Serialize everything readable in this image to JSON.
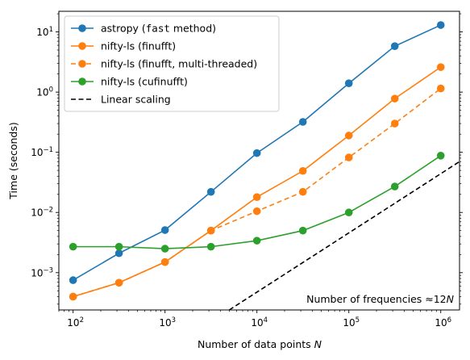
{
  "chart_data": {
    "type": "line",
    "title": "",
    "xlabel": "Number of data points N",
    "ylabel": "Time (seconds)",
    "xscale": "log",
    "yscale": "log",
    "xlim": [
      70,
      1600000
    ],
    "ylim": [
      0.00024,
      22
    ],
    "grid": false,
    "legend_position": "top-left",
    "x_ticks": [
      {
        "value": 100,
        "base": "10",
        "exp": "2"
      },
      {
        "value": 1000,
        "base": "10",
        "exp": "3"
      },
      {
        "value": 10000,
        "base": "10",
        "exp": "4"
      },
      {
        "value": 100000,
        "base": "10",
        "exp": "5"
      },
      {
        "value": 1000000,
        "base": "10",
        "exp": "6"
      }
    ],
    "y_ticks": [
      {
        "value": 0.001,
        "base": "10",
        "exp": "−3"
      },
      {
        "value": 0.01,
        "base": "10",
        "exp": "−2"
      },
      {
        "value": 0.1,
        "base": "10",
        "exp": "−1"
      },
      {
        "value": 1,
        "base": "10",
        "exp": "0"
      },
      {
        "value": 10,
        "base": "10",
        "exp": "1"
      }
    ],
    "x": [
      100,
      316,
      1000,
      3162,
      10000,
      31623,
      100000,
      316228,
      1000000
    ],
    "series": [
      {
        "name": "astropy (fast method)",
        "legend_parts": [
          "astropy (",
          "fast",
          " method)"
        ],
        "color": "#1f77b4",
        "dashed": false,
        "x": [
          100,
          316,
          1000,
          3162,
          10000,
          31623,
          100000,
          316228,
          1000000
        ],
        "values": [
          0.00075,
          0.0021,
          0.0051,
          0.022,
          0.097,
          0.32,
          1.4,
          5.8,
          13
        ]
      },
      {
        "name": "nifty-ls (finufft)",
        "legend_parts": [
          "nifty-ls (finufft)"
        ],
        "color": "#ff7f0e",
        "dashed": false,
        "x": [
          100,
          316,
          1000,
          3162,
          10000,
          31623,
          100000,
          316228,
          1000000
        ],
        "values": [
          0.0004,
          0.00068,
          0.0015,
          0.005,
          0.018,
          0.049,
          0.19,
          0.78,
          2.6
        ]
      },
      {
        "name": "nifty-ls (finufft, multi-threaded)",
        "legend_parts": [
          "nifty-ls (finufft, multi-threaded)"
        ],
        "color": "#ff7f0e",
        "dashed": true,
        "x": [
          100,
          316,
          1000,
          3162,
          10000,
          31623,
          100000,
          316228,
          1000000
        ],
        "values": [
          0.0004,
          0.00068,
          0.0015,
          0.005,
          0.0105,
          0.022,
          0.082,
          0.3,
          1.15
        ]
      },
      {
        "name": "nifty-ls (cufinufft)",
        "legend_parts": [
          "nifty-ls (cufinufft)"
        ],
        "color": "#2ca02c",
        "dashed": false,
        "x": [
          100,
          316,
          1000,
          3162,
          10000,
          31623,
          100000,
          316228,
          1000000
        ],
        "values": [
          0.0027,
          0.0027,
          0.0025,
          0.0027,
          0.0034,
          0.005,
          0.01,
          0.027,
          0.088
        ]
      },
      {
        "name": "Linear scaling",
        "legend_parts": [
          "Linear scaling"
        ],
        "color": "#000000",
        "dashed": true,
        "line_only": true,
        "x": [
          5000,
          1600000
        ],
        "values": [
          0.00024,
          0.07
        ]
      }
    ],
    "annotation": "Number of frequencies ≈12N"
  }
}
